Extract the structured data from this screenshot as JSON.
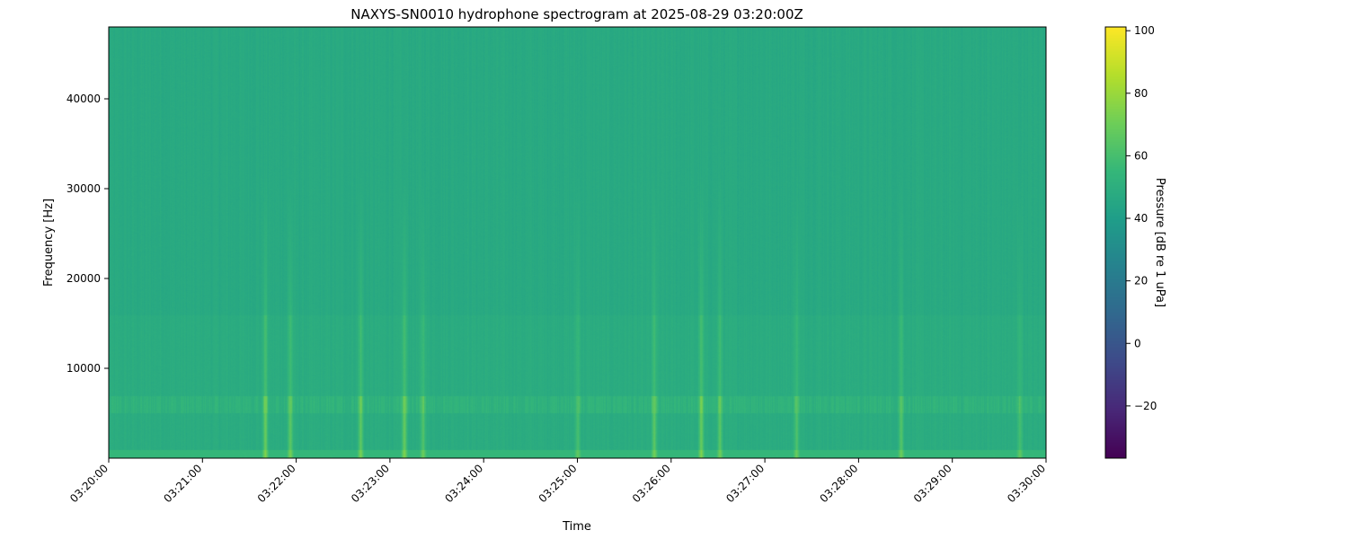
{
  "chart_data": {
    "type": "heatmap",
    "title": "NAXYS-SN0010 hydrophone spectrogram at 2025-08-29 03:20:00Z",
    "xlabel": "Time",
    "ylabel": "Frequency [Hz]",
    "xlim": [
      "03:20:00",
      "03:30:00"
    ],
    "ylim": [
      0,
      48000
    ],
    "x_ticks": [
      "03:20:00",
      "03:21:00",
      "03:22:00",
      "03:23:00",
      "03:24:00",
      "03:25:00",
      "03:26:00",
      "03:27:00",
      "03:28:00",
      "03:29:00",
      "03:30:00"
    ],
    "y_ticks": [
      10000,
      20000,
      30000,
      40000
    ],
    "colormap": "viridis",
    "colorbar": {
      "label": "Pressure [dB re 1 uPa]",
      "range": [
        -36.7,
        101.2
      ],
      "ticks": [
        -20,
        0,
        20,
        40,
        60,
        80,
        100
      ]
    },
    "background_level_db": 47,
    "low_frequency_band": {
      "freq_hz": [
        0,
        1000
      ],
      "level_db": 55
    },
    "tonal_band": {
      "freq_hz": [
        5000,
        7000
      ],
      "level_db": 52
    },
    "transient_events": [
      {
        "time": "03:21:40",
        "peak_db": 68
      },
      {
        "time": "03:21:56",
        "peak_db": 66
      },
      {
        "time": "03:22:41",
        "peak_db": 66
      },
      {
        "time": "03:23:09",
        "peak_db": 68
      },
      {
        "time": "03:23:21",
        "peak_db": 63
      },
      {
        "time": "03:25:00",
        "peak_db": 60
      },
      {
        "time": "03:25:49",
        "peak_db": 65
      },
      {
        "time": "03:26:19",
        "peak_db": 68
      },
      {
        "time": "03:26:31",
        "peak_db": 64
      },
      {
        "time": "03:27:20",
        "peak_db": 62
      },
      {
        "time": "03:28:27",
        "peak_db": 63
      },
      {
        "time": "03:29:43",
        "peak_db": 60
      }
    ]
  }
}
